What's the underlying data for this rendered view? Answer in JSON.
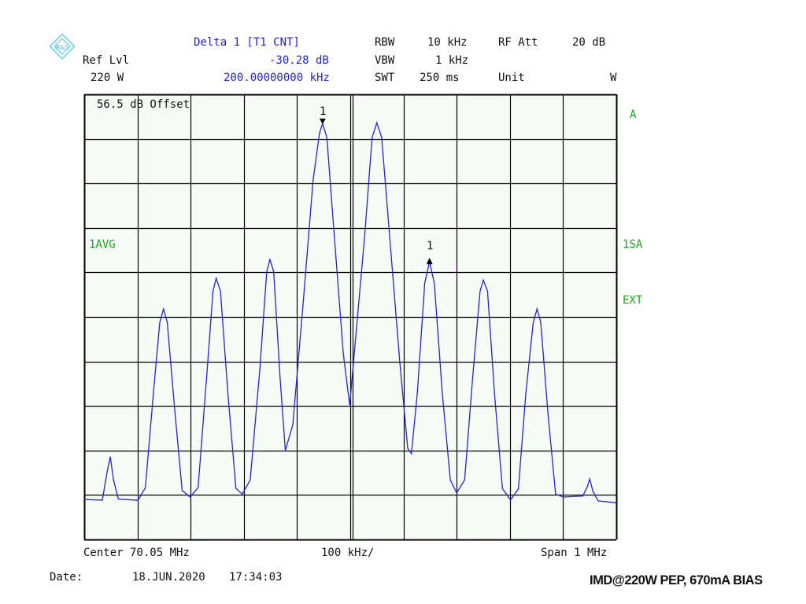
{
  "header": {
    "logo_text": "R&S",
    "ref_lvl_label": "Ref Lvl",
    "ref_lvl_value": "220 W",
    "marker_title": "Delta 1 [T1 CNT]",
    "marker_level": "-30.28 dB",
    "marker_freq": "200.00000000 kHz",
    "rbw_label": "RBW",
    "rbw_value": "10 kHz",
    "vbw_label": "VBW",
    "vbw_value": "1 kHz",
    "swt_label": "SWT",
    "swt_value": "250 ms",
    "rfatt_label": "RF Att",
    "rfatt_value": "20 dB",
    "unit_label": "Unit",
    "unit_value": "W"
  },
  "screen": {
    "offset_label": "56.5 dB Offset",
    "trace_label": "A",
    "left_label": "1AVG",
    "right_label_1": "1SA",
    "right_label_2": "EXT",
    "marker1_label": "1",
    "delta_marker_label": "1"
  },
  "footer": {
    "center": "Center 70.05 MHz",
    "per_div": "100 kHz/",
    "span": "Span 1 MHz",
    "date_label": "Date:",
    "date_value": "18.JUN.2020",
    "time_value": "17:34:03",
    "title": "IMD@220W PEP, 670mA BIAS"
  },
  "colors": {
    "trace": "#2222e0",
    "grid": "#000000",
    "plot_bg": "#f6fbf6",
    "info_text": "#2020e8",
    "status_text": "#10b010"
  },
  "chart_data": {
    "type": "line",
    "title": "",
    "xlabel": "",
    "ylabel": "",
    "x_unit": "MHz",
    "y_unit": "divisions",
    "xlim": [
      69.55,
      70.55
    ],
    "ylim": [
      0,
      10
    ],
    "grid": true,
    "grid_divisions": {
      "x": 10,
      "y": 10
    },
    "markers": [
      {
        "label": "1",
        "type": "marker",
        "x": 69.998,
        "y": 9.35
      },
      {
        "label": "1",
        "type": "delta",
        "x": 70.199,
        "y": 6.24
      }
    ],
    "series": [
      {
        "x": [
          69.55,
          69.584,
          69.593,
          69.599,
          69.605,
          69.614,
          69.651,
          69.665,
          69.68,
          69.692,
          69.699,
          69.706,
          69.72,
          69.734,
          69.749,
          69.764,
          69.78,
          69.792,
          69.798,
          69.806,
          69.82,
          69.835,
          69.847,
          69.862,
          69.88,
          69.893,
          69.899,
          69.906,
          69.918,
          69.928,
          69.942,
          69.961,
          69.98,
          69.992,
          69.998,
          70.006,
          70.02,
          70.037,
          70.049,
          70.06,
          70.077,
          70.091,
          70.1,
          70.109,
          70.124,
          70.143,
          70.158,
          70.165,
          70.176,
          70.19,
          70.199,
          70.208,
          70.223,
          70.238,
          70.25,
          70.265,
          70.28,
          70.294,
          70.3,
          70.308,
          70.321,
          70.336,
          70.351,
          70.366,
          70.38,
          70.394,
          70.401,
          70.408,
          70.422,
          70.436,
          70.45,
          70.487,
          70.496,
          70.5,
          70.506,
          70.516,
          70.55
        ],
        "y": [
          0.9,
          0.9,
          1.52,
          1.86,
          1.34,
          0.94,
          0.9,
          1.17,
          3.29,
          4.88,
          5.18,
          4.88,
          2.93,
          1.08,
          0.94,
          1.17,
          3.64,
          5.58,
          5.87,
          5.58,
          3.29,
          1.17,
          1.02,
          1.34,
          3.82,
          6.02,
          6.29,
          6.02,
          3.64,
          2.0,
          2.58,
          5.23,
          8.06,
          9.12,
          9.35,
          9.03,
          6.82,
          4.17,
          3.02,
          4.52,
          6.82,
          9.03,
          9.36,
          9.03,
          6.82,
          3.99,
          2.05,
          1.93,
          3.29,
          5.76,
          6.24,
          5.76,
          3.29,
          1.34,
          1.02,
          1.34,
          3.64,
          5.58,
          5.83,
          5.58,
          3.29,
          1.17,
          0.92,
          1.17,
          3.29,
          4.88,
          5.18,
          4.88,
          2.76,
          0.99,
          0.92,
          0.94,
          1.17,
          1.36,
          1.08,
          0.88,
          0.85
        ]
      }
    ]
  }
}
